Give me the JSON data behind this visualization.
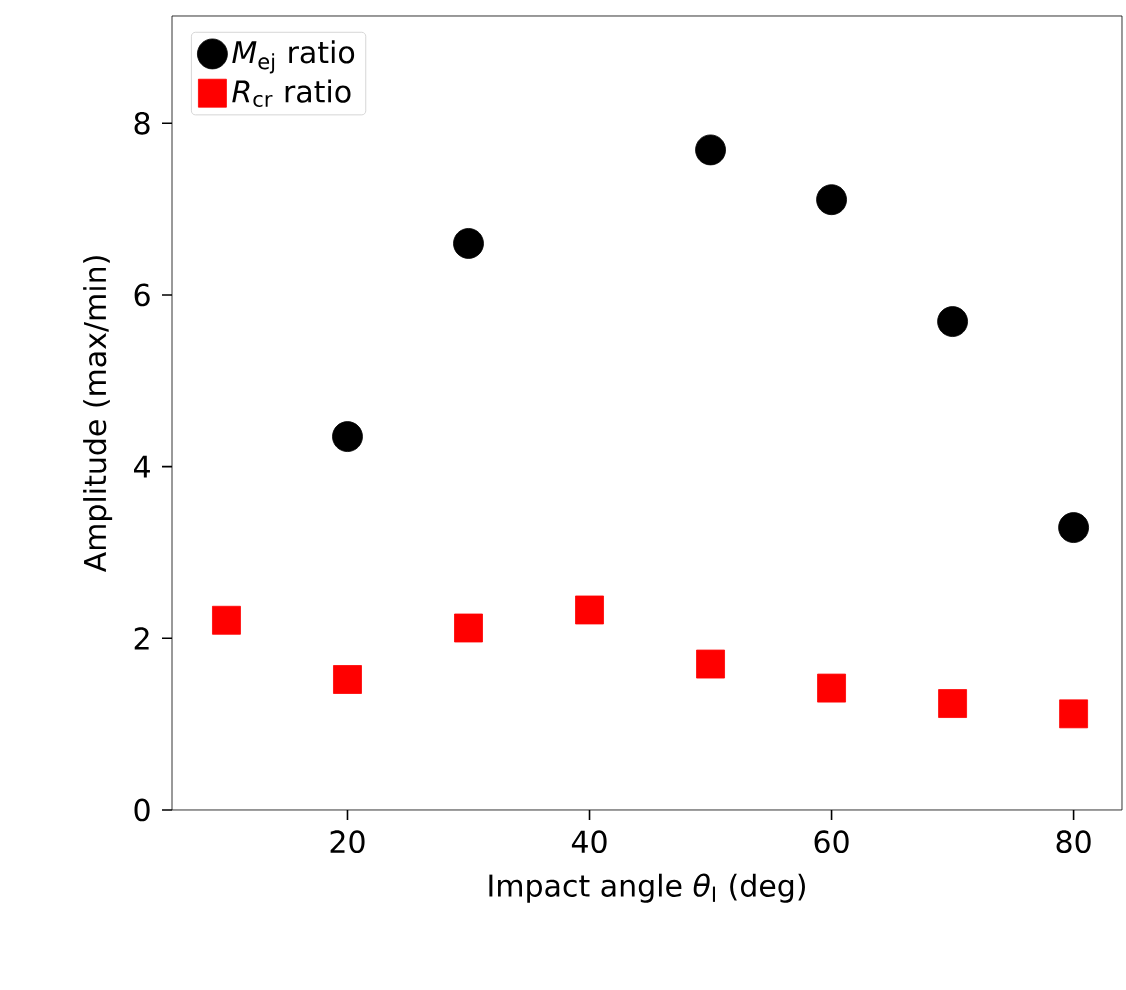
{
  "chart_data": {
    "type": "scatter",
    "xlabel": "Impact angle *θ*$_{I}$ (deg)",
    "ylabel": "Amplitude (max/min)",
    "xlim": [
      5.5,
      84
    ],
    "ylim": [
      0,
      9.25
    ],
    "xticks": [
      20,
      40,
      60,
      80
    ],
    "yticks": [
      0,
      2,
      4,
      6,
      8
    ],
    "legend": "top left",
    "grid": false,
    "series": [
      {
        "name": "*M*$_{ej}$ ratio",
        "color": "#000000",
        "marker": "circle",
        "x": [
          20,
          30,
          50,
          60,
          70,
          80
        ],
        "values": [
          4.35,
          6.6,
          7.69,
          7.11,
          5.69,
          3.29
        ]
      },
      {
        "name": "*R*$_{cr}$ ratio",
        "color": "#ff0000",
        "marker": "square",
        "x": [
          10,
          20,
          30,
          40,
          50,
          60,
          70,
          80
        ],
        "values": [
          2.21,
          1.52,
          2.12,
          2.33,
          1.7,
          1.42,
          1.24,
          1.12
        ]
      }
    ]
  }
}
